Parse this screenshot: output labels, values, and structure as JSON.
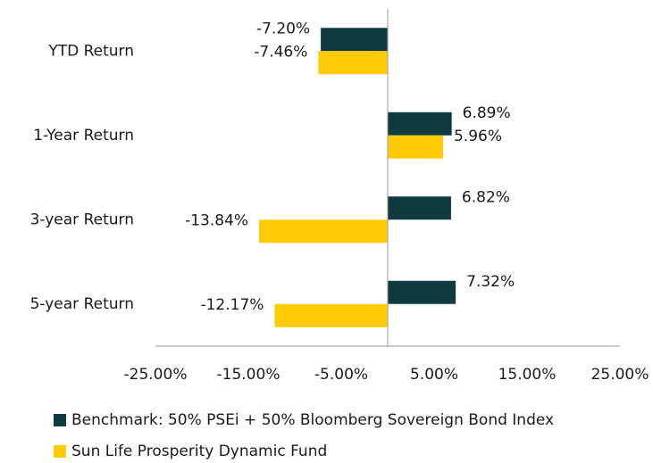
{
  "chart_data": {
    "type": "barh",
    "categories": [
      "YTD Return",
      "1-Year Return",
      "3-year Return",
      "5-year Return"
    ],
    "series": [
      {
        "name": "Benchmark: 50% PSEi + 50% Bloomberg Sovereign Bond Index",
        "color": "#0f3b40",
        "values": [
          -7.2,
          6.89,
          6.82,
          7.32
        ],
        "value_labels": [
          "-7.20%",
          "6.89%",
          "6.82%",
          "7.32%"
        ]
      },
      {
        "name": "Sun Life Prosperity Dynamic Fund",
        "color": "#ffcb05",
        "values": [
          -7.46,
          5.96,
          -13.84,
          -12.17
        ],
        "value_labels": [
          "-7.46%",
          "5.96%",
          "-13.84%",
          "-12.17%"
        ]
      }
    ],
    "xlim": [
      -25,
      25
    ],
    "xticks": [
      {
        "value": -25,
        "label": "-25.00%"
      },
      {
        "value": -15,
        "label": "-15.00%"
      },
      {
        "value": -5,
        "label": "-5.00%"
      },
      {
        "value": 5,
        "label": "5.00%"
      },
      {
        "value": 15,
        "label": "15.00%"
      },
      {
        "value": 25,
        "label": "25.00%"
      }
    ]
  }
}
